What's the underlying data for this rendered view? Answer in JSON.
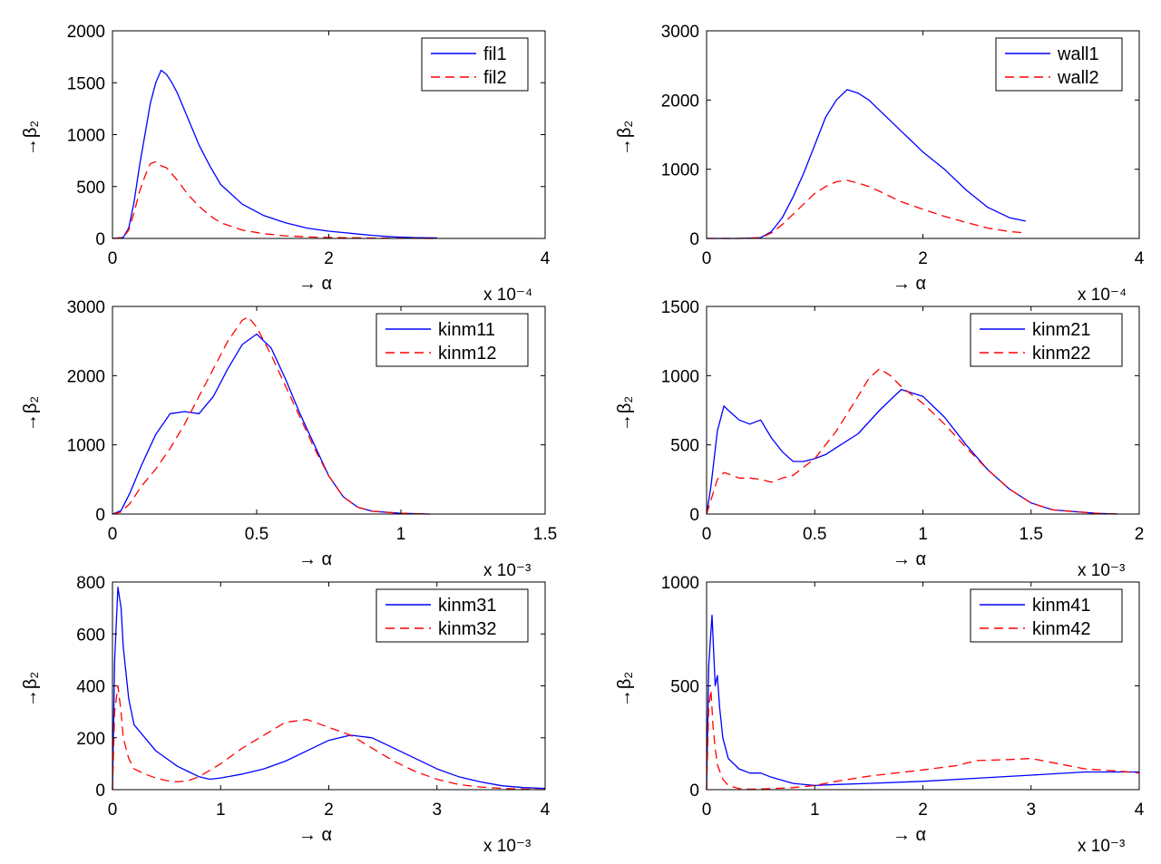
{
  "chart_data": [
    {
      "type": "line",
      "ylabel": "→β₂",
      "xlabel": "→ α",
      "xlim": [
        0,
        4
      ],
      "ylim": [
        0,
        2000
      ],
      "xticks": [
        0,
        2,
        4
      ],
      "xtick_labels": [
        "0",
        "2",
        "4"
      ],
      "yticks": [
        0,
        500,
        1000,
        1500,
        2000
      ],
      "ytick_labels": [
        "0",
        "500",
        "1000",
        "1500",
        "2000"
      ],
      "exponent_label": "x 10⁻⁴",
      "legend_position": "top-right",
      "series": [
        {
          "name": "fil1",
          "color": "#0000ff",
          "dashed": false,
          "x": [
            0,
            0.1,
            0.15,
            0.2,
            0.25,
            0.3,
            0.35,
            0.4,
            0.45,
            0.5,
            0.55,
            0.6,
            0.7,
            0.8,
            0.9,
            1.0,
            1.2,
            1.4,
            1.6,
            1.8,
            2.0,
            2.2,
            2.4,
            2.6,
            2.8,
            3.0
          ],
          "y": [
            0,
            10,
            100,
            350,
            700,
            1000,
            1300,
            1500,
            1620,
            1580,
            1500,
            1400,
            1150,
            900,
            700,
            520,
            330,
            220,
            150,
            100,
            70,
            50,
            30,
            15,
            8,
            5
          ]
        },
        {
          "name": "fil2",
          "color": "#ff0000",
          "dashed": true,
          "x": [
            0,
            0.1,
            0.15,
            0.2,
            0.25,
            0.3,
            0.35,
            0.4,
            0.45,
            0.5,
            0.6,
            0.7,
            0.8,
            0.9,
            1.0,
            1.2,
            1.4,
            1.6,
            1.8,
            2.0,
            2.2,
            2.5,
            3.0
          ],
          "y": [
            0,
            8,
            80,
            250,
            450,
            600,
            720,
            740,
            700,
            680,
            560,
            420,
            310,
            220,
            150,
            80,
            45,
            25,
            15,
            10,
            6,
            3,
            0
          ]
        }
      ]
    },
    {
      "type": "line",
      "ylabel": "→β₂",
      "xlabel": "→ α",
      "xlim": [
        0,
        4
      ],
      "ylim": [
        0,
        3000
      ],
      "xticks": [
        0,
        2,
        4
      ],
      "xtick_labels": [
        "0",
        "2",
        "4"
      ],
      "yticks": [
        0,
        1000,
        2000,
        3000
      ],
      "ytick_labels": [
        "0",
        "1000",
        "2000",
        "3000"
      ],
      "exponent_label": "x 10⁻⁴",
      "legend_position": "top-right",
      "series": [
        {
          "name": "wall1",
          "color": "#0000ff",
          "dashed": false,
          "x": [
            0,
            0.3,
            0.5,
            0.6,
            0.7,
            0.8,
            0.9,
            1.0,
            1.1,
            1.2,
            1.3,
            1.4,
            1.5,
            1.6,
            1.7,
            1.8,
            1.9,
            2.0,
            2.2,
            2.4,
            2.6,
            2.8,
            2.95
          ],
          "y": [
            0,
            0,
            10,
            100,
            300,
            600,
            950,
            1350,
            1750,
            2000,
            2150,
            2100,
            2000,
            1850,
            1700,
            1550,
            1400,
            1250,
            1000,
            700,
            450,
            300,
            250
          ]
        },
        {
          "name": "wall2",
          "color": "#ff0000",
          "dashed": true,
          "x": [
            0,
            0.3,
            0.5,
            0.6,
            0.7,
            0.8,
            0.9,
            1.0,
            1.1,
            1.2,
            1.3,
            1.4,
            1.5,
            1.6,
            1.8,
            2.0,
            2.2,
            2.4,
            2.6,
            2.8,
            2.95
          ],
          "y": [
            0,
            0,
            10,
            80,
            200,
            350,
            500,
            650,
            750,
            820,
            840,
            800,
            750,
            680,
            530,
            420,
            320,
            230,
            150,
            100,
            80
          ]
        }
      ]
    },
    {
      "type": "line",
      "ylabel": "→β₂",
      "xlabel": "→ α",
      "xlim": [
        0,
        1.5
      ],
      "ylim": [
        0,
        3000
      ],
      "xticks": [
        0,
        0.5,
        1,
        1.5
      ],
      "xtick_labels": [
        "0",
        "0.5",
        "1",
        "1.5"
      ],
      "yticks": [
        0,
        1000,
        2000,
        3000
      ],
      "ytick_labels": [
        "0",
        "1000",
        "2000",
        "3000"
      ],
      "exponent_label": "x 10⁻³",
      "legend_position": "top-right",
      "series": [
        {
          "name": "kinm11",
          "color": "#0000ff",
          "dashed": false,
          "x": [
            0,
            0.03,
            0.06,
            0.1,
            0.15,
            0.2,
            0.25,
            0.3,
            0.35,
            0.4,
            0.45,
            0.5,
            0.55,
            0.6,
            0.65,
            0.7,
            0.75,
            0.8,
            0.85,
            0.9,
            1.0,
            1.1
          ],
          "y": [
            0,
            50,
            300,
            700,
            1150,
            1450,
            1480,
            1450,
            1700,
            2100,
            2450,
            2600,
            2400,
            1950,
            1450,
            1000,
            550,
            250,
            100,
            40,
            10,
            0
          ]
        },
        {
          "name": "kinm12",
          "color": "#ff0000",
          "dashed": true,
          "x": [
            0,
            0.03,
            0.06,
            0.1,
            0.15,
            0.2,
            0.25,
            0.3,
            0.35,
            0.4,
            0.45,
            0.47,
            0.5,
            0.55,
            0.6,
            0.65,
            0.7,
            0.75,
            0.8,
            0.85,
            0.9,
            1.0,
            1.1
          ],
          "y": [
            0,
            30,
            150,
            400,
            650,
            950,
            1300,
            1700,
            2100,
            2500,
            2800,
            2850,
            2700,
            2300,
            1850,
            1400,
            950,
            550,
            250,
            100,
            40,
            10,
            0
          ]
        }
      ]
    },
    {
      "type": "line",
      "ylabel": "→β₂",
      "xlabel": "→ α",
      "xlim": [
        0,
        2
      ],
      "ylim": [
        0,
        1500
      ],
      "xticks": [
        0,
        0.5,
        1,
        1.5,
        2
      ],
      "xtick_labels": [
        "0",
        "0.5",
        "1",
        "1.5",
        "2"
      ],
      "yticks": [
        0,
        500,
        1000,
        1500
      ],
      "ytick_labels": [
        "0",
        "500",
        "1000",
        "1500"
      ],
      "exponent_label": "x 10⁻³",
      "legend_position": "top-right",
      "series": [
        {
          "name": "kinm21",
          "color": "#0000ff",
          "dashed": false,
          "x": [
            0,
            0.02,
            0.05,
            0.08,
            0.1,
            0.15,
            0.2,
            0.25,
            0.3,
            0.35,
            0.4,
            0.45,
            0.5,
            0.55,
            0.6,
            0.7,
            0.8,
            0.9,
            1.0,
            1.1,
            1.2,
            1.3,
            1.4,
            1.5,
            1.6,
            1.8,
            1.9
          ],
          "y": [
            0,
            200,
            600,
            780,
            750,
            680,
            650,
            680,
            550,
            450,
            380,
            380,
            400,
            430,
            480,
            580,
            750,
            900,
            850,
            700,
            500,
            320,
            180,
            80,
            30,
            5,
            0
          ]
        },
        {
          "name": "kinm22",
          "color": "#ff0000",
          "dashed": true,
          "x": [
            0,
            0.02,
            0.05,
            0.08,
            0.1,
            0.15,
            0.2,
            0.25,
            0.3,
            0.35,
            0.4,
            0.5,
            0.6,
            0.7,
            0.75,
            0.8,
            0.85,
            0.9,
            1.0,
            1.1,
            1.2,
            1.3,
            1.4,
            1.5,
            1.6,
            1.8,
            1.9
          ],
          "y": [
            0,
            100,
            250,
            300,
            290,
            260,
            260,
            250,
            230,
            260,
            280,
            400,
            600,
            850,
            980,
            1050,
            1000,
            920,
            800,
            650,
            480,
            320,
            180,
            80,
            30,
            5,
            0
          ]
        }
      ]
    },
    {
      "type": "line",
      "ylabel": "→β₂",
      "xlabel": "→ α",
      "xlim": [
        0,
        4
      ],
      "ylim": [
        0,
        800
      ],
      "xticks": [
        0,
        1,
        2,
        3,
        4
      ],
      "xtick_labels": [
        "0",
        "1",
        "2",
        "3",
        "4"
      ],
      "yticks": [
        0,
        200,
        400,
        600,
        800
      ],
      "ytick_labels": [
        "0",
        "200",
        "400",
        "600",
        "800"
      ],
      "exponent_label": "x 10⁻³",
      "legend_position": "top-right",
      "series": [
        {
          "name": "kinm31",
          "color": "#0000ff",
          "dashed": false,
          "x": [
            0,
            0.02,
            0.05,
            0.08,
            0.1,
            0.15,
            0.2,
            0.3,
            0.4,
            0.5,
            0.6,
            0.7,
            0.8,
            0.9,
            1.0,
            1.2,
            1.4,
            1.6,
            1.8,
            2.0,
            2.2,
            2.4,
            2.6,
            2.8,
            3.0,
            3.2,
            3.4,
            3.6,
            3.8,
            4.0
          ],
          "y": [
            0,
            500,
            780,
            700,
            550,
            350,
            250,
            200,
            150,
            120,
            90,
            70,
            50,
            40,
            45,
            60,
            80,
            110,
            150,
            190,
            210,
            200,
            160,
            120,
            80,
            50,
            30,
            15,
            8,
            5
          ]
        },
        {
          "name": "kinm32",
          "color": "#ff0000",
          "dashed": true,
          "x": [
            0,
            0.02,
            0.05,
            0.08,
            0.1,
            0.15,
            0.2,
            0.3,
            0.4,
            0.5,
            0.6,
            0.7,
            0.8,
            1.0,
            1.2,
            1.4,
            1.6,
            1.8,
            2.0,
            2.2,
            2.4,
            2.6,
            2.8,
            3.0,
            3.2,
            3.4,
            3.6,
            3.8,
            4.0
          ],
          "y": [
            0,
            300,
            400,
            300,
            200,
            120,
            80,
            60,
            45,
            35,
            30,
            35,
            50,
            100,
            160,
            210,
            260,
            270,
            240,
            210,
            160,
            110,
            70,
            40,
            20,
            10,
            5,
            2,
            0
          ]
        }
      ]
    },
    {
      "type": "line",
      "ylabel": "→β₂",
      "xlabel": "→ α",
      "xlim": [
        0,
        4
      ],
      "ylim": [
        0,
        1000
      ],
      "xticks": [
        0,
        1,
        2,
        3,
        4
      ],
      "xtick_labels": [
        "0",
        "1",
        "2",
        "3",
        "4"
      ],
      "yticks": [
        0,
        500,
        1000
      ],
      "ytick_labels": [
        "0",
        "500",
        "1000"
      ],
      "exponent_label": "x 10⁻³",
      "legend_position": "top-right",
      "series": [
        {
          "name": "kinm41",
          "color": "#0000ff",
          "dashed": false,
          "x": [
            0,
            0.02,
            0.05,
            0.08,
            0.1,
            0.12,
            0.15,
            0.2,
            0.3,
            0.4,
            0.5,
            0.6,
            0.8,
            1.0,
            1.2,
            1.5,
            2.0,
            2.5,
            3.0,
            3.5,
            4.0
          ],
          "y": [
            0,
            600,
            840,
            500,
            550,
            400,
            250,
            150,
            100,
            80,
            80,
            60,
            30,
            20,
            25,
            30,
            40,
            55,
            70,
            85,
            85
          ]
        },
        {
          "name": "kinm42",
          "color": "#ff0000",
          "dashed": true,
          "x": [
            0,
            0.02,
            0.04,
            0.06,
            0.08,
            0.1,
            0.15,
            0.2,
            0.3,
            0.4,
            0.6,
            0.8,
            1.0,
            1.2,
            1.5,
            2.0,
            2.3,
            2.5,
            2.8,
            3.0,
            3.2,
            3.5,
            3.8,
            4.0
          ],
          "y": [
            0,
            400,
            480,
            300,
            200,
            120,
            50,
            20,
            5,
            2,
            5,
            10,
            20,
            40,
            65,
            95,
            115,
            140,
            145,
            150,
            130,
            100,
            90,
            80
          ]
        }
      ]
    }
  ]
}
